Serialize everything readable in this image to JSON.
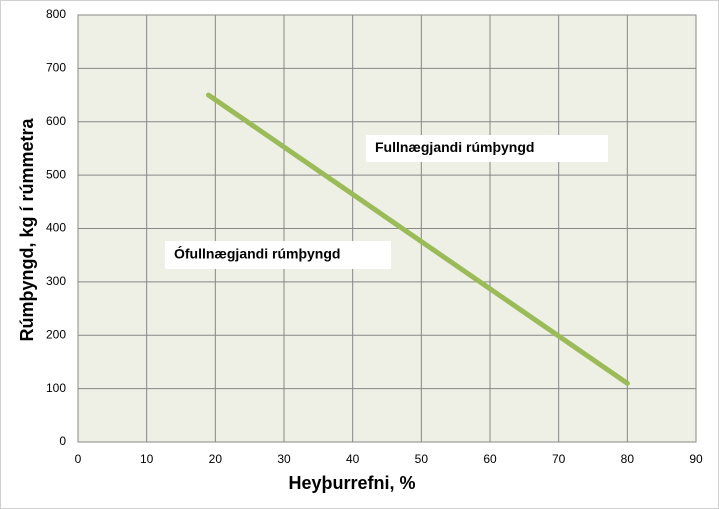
{
  "chart_data": {
    "type": "line",
    "x_label": "Heyþurrefni, %",
    "y_label": "Rúmþyngd, kg í rúmmetra",
    "x": [
      19,
      80
    ],
    "series": [
      {
        "color": "#9bbb59",
        "values": [
          650,
          110
        ]
      }
    ],
    "xlim": [
      0,
      90
    ],
    "xticks": [
      0,
      10,
      20,
      30,
      40,
      50,
      60,
      70,
      80,
      90
    ],
    "ylim": [
      0,
      800
    ],
    "yticks": [
      0,
      100,
      200,
      300,
      400,
      500,
      600,
      700,
      800
    ],
    "grid": true,
    "annotations": [
      "Fullnægjandi rúmþyngd",
      "Ófullnægjandi rúmþyngd"
    ]
  }
}
